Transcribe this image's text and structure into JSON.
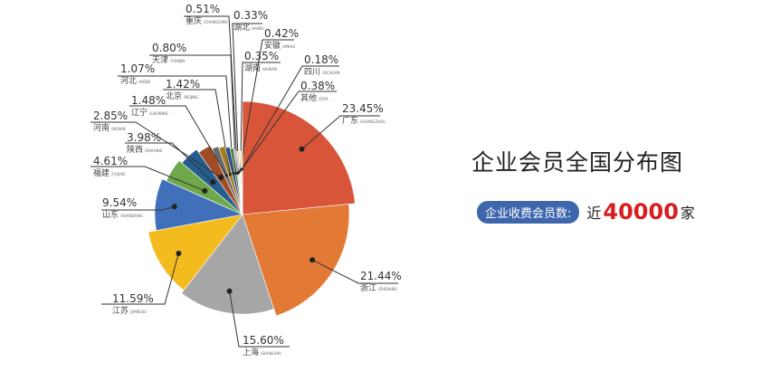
{
  "chart_data": {
    "type": "pie",
    "title": "企业会员全国分布图",
    "slices": [
      {
        "label": "广东",
        "pinyin": "GUANGZHOU",
        "value": 23.45,
        "pct": "23.45%",
        "color": "#d9553a"
      },
      {
        "label": "浙江",
        "pinyin": "ZHEJIANG",
        "value": 21.44,
        "pct": "21.44%",
        "color": "#e27a36"
      },
      {
        "label": "上海",
        "pinyin": "SHANGHAI",
        "value": 15.6,
        "pct": "15.60%",
        "color": "#a6a6a6"
      },
      {
        "label": "江苏",
        "pinyin": "JIANGSU",
        "value": 11.59,
        "pct": "11.59%",
        "color": "#f4bb1e"
      },
      {
        "label": "山东",
        "pinyin": "SHANDONG",
        "value": 9.54,
        "pct": "9.54%",
        "color": "#4170bb"
      },
      {
        "label": "福建",
        "pinyin": "FUJIAN",
        "value": 4.61,
        "pct": "4.61%",
        "color": "#6fa84a"
      },
      {
        "label": "陕西",
        "pinyin": "SHAANXI",
        "value": 3.98,
        "pct": "3.98%",
        "color": "#245e8f"
      },
      {
        "label": "河南",
        "pinyin": "HENAN",
        "value": 2.85,
        "pct": "2.85%",
        "color": "#a24b25"
      },
      {
        "label": "辽宁",
        "pinyin": "LIAONING",
        "value": 1.48,
        "pct": "1.48%",
        "color": "#6b6b6b"
      },
      {
        "label": "北京",
        "pinyin": "BEIJING",
        "value": 1.42,
        "pct": "1.42%",
        "color": "#a67d1e"
      },
      {
        "label": "河北",
        "pinyin": "HEBEI",
        "value": 1.07,
        "pct": "1.07%",
        "color": "#2b4d8a"
      },
      {
        "label": "天津",
        "pinyin": "TIANJIN",
        "value": 0.8,
        "pct": "0.80%",
        "color": "#4f7d32"
      },
      {
        "label": "重庆",
        "pinyin": "CHONGQING",
        "value": 0.51,
        "pct": "0.51%",
        "color": "#9bb6dd"
      },
      {
        "label": "湖北",
        "pinyin": "HUBEI",
        "value": 0.33,
        "pct": "0.33%",
        "color": "#f0a77a"
      },
      {
        "label": "安徽",
        "pinyin": "ANHUI",
        "value": 0.42,
        "pct": "0.42%",
        "color": "#c9c9c9"
      },
      {
        "label": "湖南",
        "pinyin": "HUNAN",
        "value": 0.35,
        "pct": "0.35%",
        "color": "#f8d77e"
      },
      {
        "label": "四川",
        "pinyin": "SICHUAN",
        "value": 0.18,
        "pct": "0.18%",
        "color": "#8ea9db"
      },
      {
        "label": "其他",
        "pinyin": "QITA",
        "value": 0.38,
        "pct": "0.38%",
        "color": "#a9cf8f"
      }
    ]
  },
  "summary": {
    "badge": "企业收费会员数:",
    "prefix": "近",
    "count": "40000",
    "unit": "家"
  }
}
